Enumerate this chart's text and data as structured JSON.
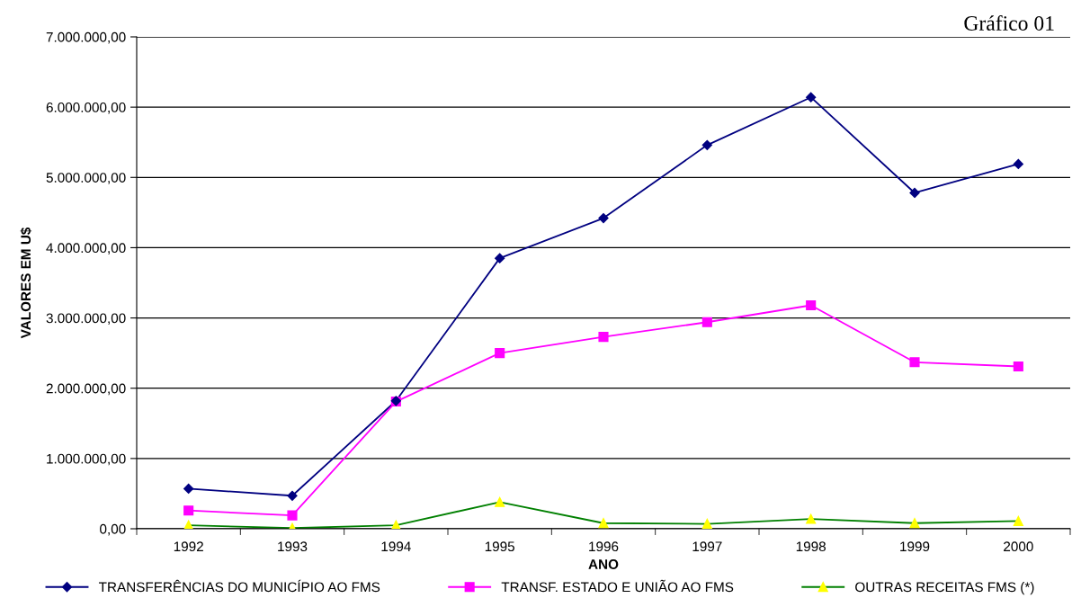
{
  "chart_data": {
    "type": "line",
    "title": "Gráfico 01",
    "xlabel": "ANO",
    "ylabel": "VALORES EM U$",
    "categories": [
      "1992",
      "1993",
      "1994",
      "1995",
      "1996",
      "1997",
      "1998",
      "1999",
      "2000"
    ],
    "series": [
      {
        "name": "TRANSFERÊNCIAS DO MUNICÍPIO AO FMS",
        "color": "#000080",
        "marker": "diamond",
        "values": [
          570000,
          470000,
          1820000,
          3850000,
          4420000,
          5460000,
          6140000,
          4780000,
          5190000
        ]
      },
      {
        "name": "TRANSF. ESTADO E UNIÃO AO FMS",
        "color": "#ff00ff",
        "marker": "square",
        "values": [
          260000,
          190000,
          1810000,
          2500000,
          2730000,
          2940000,
          3180000,
          2370000,
          2310000
        ]
      },
      {
        "name": "OUTRAS RECEITAS FMS (*)",
        "color": "#008000",
        "colors": [
          "#ffff00",
          "#ffff00",
          "#ffff00",
          "#ffff00",
          "#ffff00",
          "#ffff00",
          "#ffff00",
          "#ffff00",
          "#ffff00"
        ],
        "marker": "triangle",
        "values": [
          50000,
          10000,
          50000,
          380000,
          80000,
          70000,
          140000,
          80000,
          110000
        ]
      }
    ],
    "ylim": [
      0,
      7000000
    ],
    "yticks": [
      {
        "value": 0,
        "label": "0,00"
      },
      {
        "value": 1000000,
        "label": "1.000.000,00"
      },
      {
        "value": 2000000,
        "label": "2.000.000,00"
      },
      {
        "value": 3000000,
        "label": "3.000.000,00"
      },
      {
        "value": 4000000,
        "label": "4.000.000,00"
      },
      {
        "value": 5000000,
        "label": "5.000.000,00"
      },
      {
        "value": 6000000,
        "label": "6.000.000,00"
      },
      {
        "value": 7000000,
        "label": "7.000.000,00"
      }
    ],
    "grid": "y",
    "legend": "bottom",
    "line_style": "solid"
  }
}
